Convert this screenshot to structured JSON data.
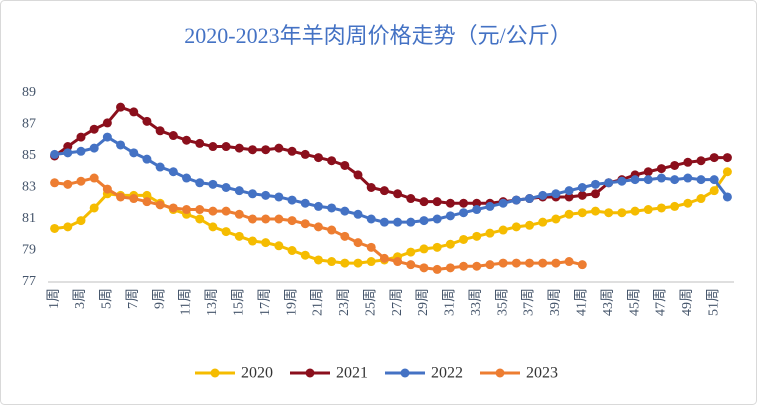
{
  "chart_data": {
    "type": "line",
    "title": "2020-2023年羊肉周价格走势（元/公斤）",
    "categories": [
      "1周",
      null,
      "3周",
      null,
      "5周",
      null,
      "7周",
      null,
      "9周",
      null,
      "11周",
      null,
      "13周",
      null,
      "15周",
      null,
      "17周",
      null,
      "19周",
      null,
      "21周",
      null,
      "23周",
      null,
      "25周",
      null,
      "27周",
      null,
      "29周",
      null,
      "31周",
      null,
      "33周",
      null,
      "35周",
      null,
      "37周",
      null,
      "39周",
      null,
      "41周",
      null,
      "43周",
      null,
      "45周",
      null,
      "47周",
      null,
      "49周",
      null,
      "51周",
      null
    ],
    "series": [
      {
        "name": "2020",
        "color": "#f5bc00",
        "values": [
          80.4,
          80.5,
          80.9,
          81.7,
          82.6,
          82.5,
          82.5,
          82.5,
          82.0,
          81.6,
          81.3,
          81.0,
          80.5,
          80.2,
          79.9,
          79.6,
          79.5,
          79.3,
          79.0,
          78.7,
          78.4,
          78.3,
          78.2,
          78.2,
          78.3,
          78.4,
          78.6,
          78.9,
          79.1,
          79.2,
          79.4,
          79.7,
          79.9,
          80.1,
          80.3,
          80.5,
          80.6,
          80.8,
          81.0,
          81.3,
          81.4,
          81.5,
          81.4,
          81.4,
          81.5,
          81.6,
          81.7,
          81.8,
          82.0,
          82.3,
          82.8,
          84.0
        ]
      },
      {
        "name": "2021",
        "color": "#8b0f1c",
        "values": [
          85.0,
          85.6,
          86.2,
          86.7,
          87.1,
          88.1,
          87.8,
          87.2,
          86.6,
          86.3,
          86.0,
          85.8,
          85.6,
          85.6,
          85.5,
          85.4,
          85.4,
          85.5,
          85.3,
          85.1,
          84.9,
          84.7,
          84.4,
          83.8,
          83.0,
          82.8,
          82.6,
          82.3,
          82.1,
          82.1,
          82.0,
          82.0,
          82.0,
          82.0,
          82.1,
          82.2,
          82.3,
          82.4,
          82.4,
          82.4,
          82.5,
          82.6,
          83.3,
          83.5,
          83.8,
          84.0,
          84.2,
          84.4,
          84.6,
          84.7,
          84.9,
          84.9
        ]
      },
      {
        "name": "2022",
        "color": "#4472c4",
        "values": [
          85.1,
          85.2,
          85.3,
          85.5,
          86.2,
          85.7,
          85.2,
          84.8,
          84.3,
          84.0,
          83.6,
          83.3,
          83.2,
          83.0,
          82.8,
          82.6,
          82.5,
          82.4,
          82.2,
          82.0,
          81.8,
          81.7,
          81.5,
          81.3,
          81.0,
          80.8,
          80.8,
          80.8,
          80.9,
          81.0,
          81.2,
          81.4,
          81.6,
          81.8,
          82.0,
          82.2,
          82.3,
          82.5,
          82.6,
          82.8,
          83.0,
          83.2,
          83.3,
          83.4,
          83.5,
          83.5,
          83.6,
          83.5,
          83.6,
          83.5,
          83.5,
          82.4
        ]
      },
      {
        "name": "2023",
        "color": "#ed7d31",
        "values": [
          83.3,
          83.2,
          83.4,
          83.6,
          82.9,
          82.4,
          82.3,
          82.1,
          81.9,
          81.7,
          81.6,
          81.6,
          81.5,
          81.5,
          81.3,
          81.0,
          81.0,
          81.0,
          80.9,
          80.7,
          80.5,
          80.3,
          79.9,
          79.5,
          79.2,
          78.5,
          78.3,
          78.1,
          77.9,
          77.8,
          77.9,
          78.0,
          78.0,
          78.1,
          78.2,
          78.2,
          78.2,
          78.2,
          78.2,
          78.3,
          78.1,
          null,
          null,
          null,
          null,
          null,
          null,
          null,
          null,
          null,
          null,
          null
        ]
      }
    ],
    "ylim": [
      77,
      89
    ],
    "yticks": [
      77,
      79,
      81,
      83,
      85,
      87,
      89
    ],
    "grid": false,
    "legend": "bottom"
  }
}
